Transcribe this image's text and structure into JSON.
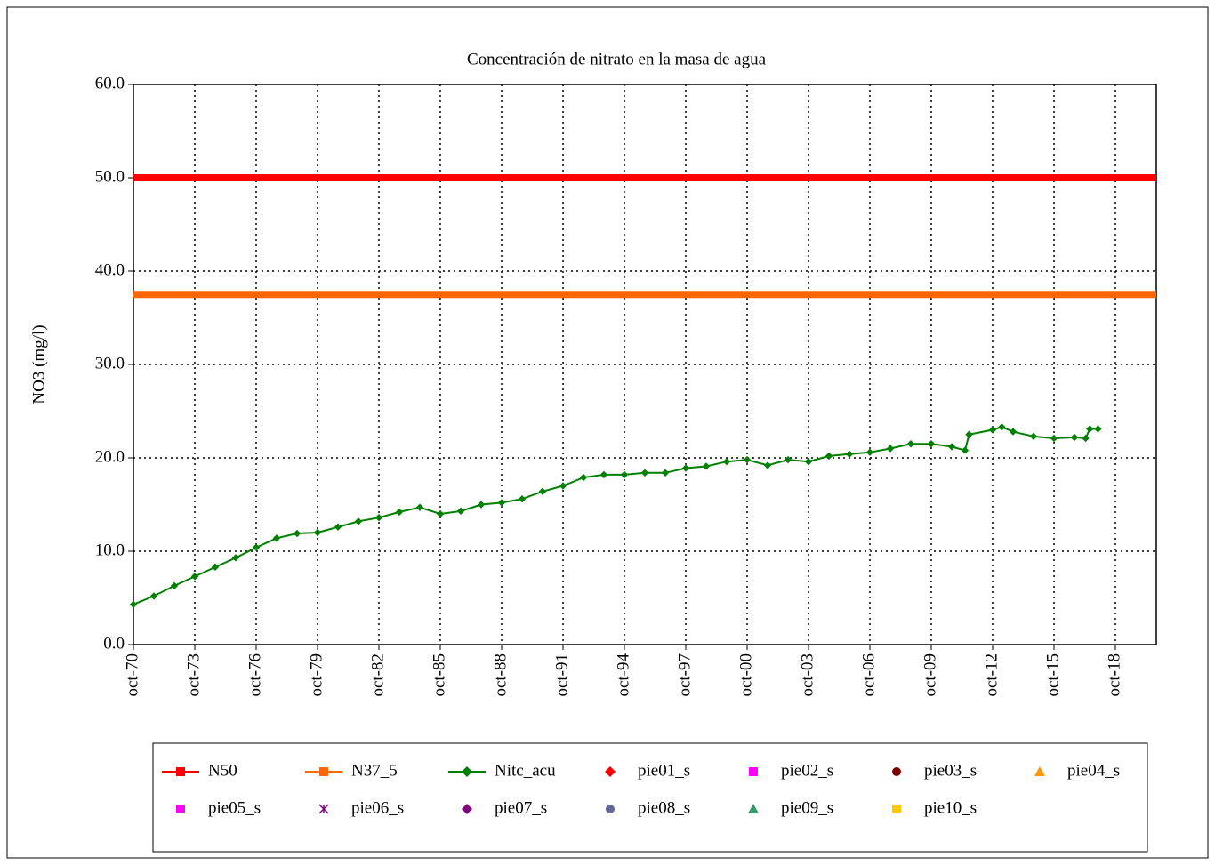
{
  "chart_data": {
    "type": "line",
    "title": "Concentración de nitrato en la masa de agua",
    "ylabel": "NO3 (mg/l)",
    "xlim": [
      1970.75,
      2020.75
    ],
    "xticks": [
      {
        "value": 1970.75,
        "label": "oct-70"
      },
      {
        "value": 1973.75,
        "label": "oct-73"
      },
      {
        "value": 1976.75,
        "label": "oct-76"
      },
      {
        "value": 1979.75,
        "label": "oct-79"
      },
      {
        "value": 1982.75,
        "label": "oct-82"
      },
      {
        "value": 1985.75,
        "label": "oct-85"
      },
      {
        "value": 1988.75,
        "label": "oct-88"
      },
      {
        "value": 1991.75,
        "label": "oct-91"
      },
      {
        "value": 1994.75,
        "label": "oct-94"
      },
      {
        "value": 1997.75,
        "label": "oct-97"
      },
      {
        "value": 2000.75,
        "label": "oct-00"
      },
      {
        "value": 2003.75,
        "label": "oct-03"
      },
      {
        "value": 2006.75,
        "label": "oct-06"
      },
      {
        "value": 2009.75,
        "label": "oct-09"
      },
      {
        "value": 2012.75,
        "label": "oct-12"
      },
      {
        "value": 2015.75,
        "label": "oct-15"
      },
      {
        "value": 2018.75,
        "label": "oct-18"
      }
    ],
    "ylim": [
      0,
      60
    ],
    "yticks": [
      {
        "value": 0,
        "label": "0.0"
      },
      {
        "value": 10,
        "label": "10.0"
      },
      {
        "value": 20,
        "label": "20.0"
      },
      {
        "value": 30,
        "label": "30.0"
      },
      {
        "value": 40,
        "label": "40.0"
      },
      {
        "value": 50,
        "label": "50.0"
      },
      {
        "value": 60,
        "label": "60.0"
      }
    ],
    "grid": true,
    "legend": "bottom",
    "series": [
      {
        "name": "N50",
        "color": "#ff0000",
        "marker": "square",
        "x": [
          1970.75,
          2020.75
        ],
        "values": [
          50,
          50
        ]
      },
      {
        "name": "N37_5",
        "color": "#ff6600",
        "marker": "square",
        "x": [
          1970.75,
          2020.75
        ],
        "values": [
          37.5,
          37.5
        ]
      },
      {
        "name": "Nitc_acu",
        "color": "#008000",
        "marker": "diamond",
        "x": [
          1970.75,
          1971.75,
          1972.75,
          1973.75,
          1974.75,
          1975.75,
          1976.75,
          1977.75,
          1978.75,
          1979.75,
          1980.75,
          1981.75,
          1982.75,
          1983.75,
          1984.75,
          1985.75,
          1986.75,
          1987.75,
          1988.75,
          1989.75,
          1990.75,
          1991.75,
          1992.75,
          1993.75,
          1994.75,
          1995.75,
          1996.75,
          1997.75,
          1998.75,
          1999.75,
          2000.75,
          2001.75,
          2002.75,
          2003.75,
          2004.75,
          2005.75,
          2006.75,
          2007.75,
          2008.75,
          2009.75,
          2010.75,
          2011.4,
          2011.6,
          2012.75,
          2013.2,
          2013.75,
          2014.75,
          2015.75,
          2016.75,
          2017.3,
          2017.5,
          2017.9
        ],
        "values": [
          4.3,
          5.2,
          6.3,
          7.3,
          8.3,
          9.3,
          10.4,
          11.4,
          11.9,
          12.0,
          12.6,
          13.2,
          13.6,
          14.2,
          14.7,
          14.0,
          14.3,
          15.0,
          15.2,
          15.6,
          16.4,
          17.0,
          17.9,
          18.2,
          18.2,
          18.4,
          18.4,
          18.9,
          19.1,
          19.6,
          19.8,
          19.2,
          19.8,
          19.6,
          20.2,
          20.4,
          20.6,
          21.0,
          21.5,
          21.5,
          21.2,
          20.8,
          22.5,
          23.0,
          23.3,
          22.8,
          22.3,
          22.1,
          22.2,
          22.1,
          23.1,
          23.1
        ]
      },
      {
        "name": "pie01_s",
        "color": "#ff0000",
        "marker": "diamond",
        "x": [],
        "values": []
      },
      {
        "name": "pie02_s",
        "color": "#ff00ff",
        "marker": "square",
        "x": [],
        "values": []
      },
      {
        "name": "pie03_s",
        "color": "#800000",
        "marker": "circle",
        "x": [],
        "values": []
      },
      {
        "name": "pie04_s",
        "color": "#ff9900",
        "marker": "triangle",
        "x": [],
        "values": []
      },
      {
        "name": "pie05_s",
        "color": "#ff00ff",
        "marker": "square",
        "x": [],
        "values": []
      },
      {
        "name": "pie06_s",
        "color": "#800080",
        "marker": "star",
        "x": [],
        "values": []
      },
      {
        "name": "pie07_s",
        "color": "#800080",
        "marker": "diamond",
        "x": [],
        "values": []
      },
      {
        "name": "pie08_s",
        "color": "#666699",
        "marker": "circle",
        "x": [],
        "values": []
      },
      {
        "name": "pie09_s",
        "color": "#339966",
        "marker": "triangle",
        "x": [],
        "values": []
      },
      {
        "name": "pie10_s",
        "color": "#ffcc00",
        "marker": "square",
        "x": [],
        "values": []
      }
    ]
  }
}
